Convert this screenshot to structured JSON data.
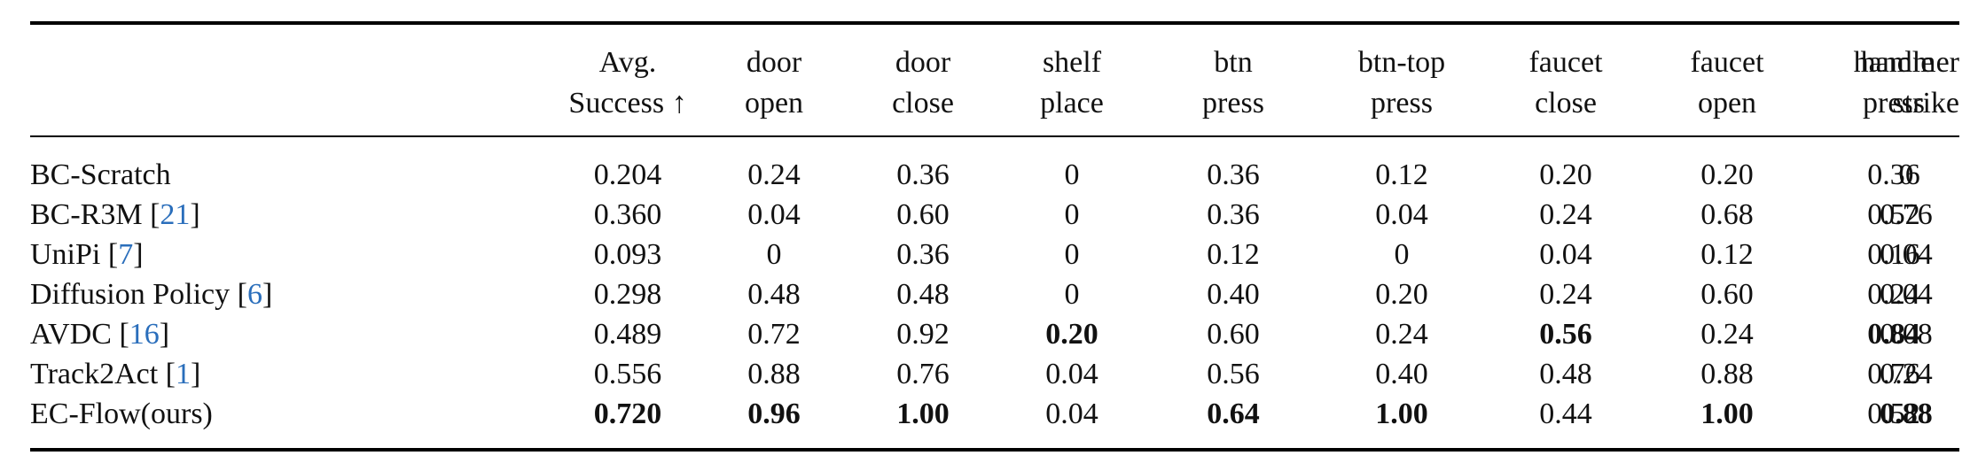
{
  "table": {
    "header": [
      [
        "Avg.",
        "Success ↑"
      ],
      [
        "door",
        "open"
      ],
      [
        "door",
        "close"
      ],
      [
        "shelf",
        "place"
      ],
      [
        "btn",
        "press"
      ],
      [
        "btn-top",
        "press"
      ],
      [
        "faucet",
        "close"
      ],
      [
        "faucet",
        "open"
      ],
      [
        "handle",
        "press"
      ],
      [
        "hammer",
        "strike"
      ]
    ],
    "rows": [
      {
        "label": [
          "BC-Scratch"
        ],
        "cells": [
          "0.204",
          "0.24",
          "0.36",
          "0",
          "0.36",
          "0.12",
          "0.20",
          "0.20",
          "0.36",
          "0"
        ],
        "bold": []
      },
      {
        "label": [
          "BC-R3M [",
          "21",
          "]"
        ],
        "cells": [
          "0.360",
          "0.04",
          "0.60",
          "0",
          "0.36",
          "0.04",
          "0.24",
          "0.68",
          "0.52",
          "0.76"
        ],
        "bold": []
      },
      {
        "label": [
          "UniPi [",
          "7",
          "]"
        ],
        "cells": [
          "0.093",
          "0",
          "0.36",
          "0",
          "0.12",
          "0",
          "0.04",
          "0.12",
          "0.16",
          "0.04"
        ],
        "bold": []
      },
      {
        "label": [
          "Diffusion Policy [",
          "6",
          "]"
        ],
        "cells": [
          "0.298",
          "0.48",
          "0.48",
          "0",
          "0.40",
          "0.20",
          "0.24",
          "0.60",
          "0.24",
          "0.04"
        ],
        "bold": []
      },
      {
        "label": [
          "AVDC [",
          "16",
          "]"
        ],
        "cells": [
          "0.489",
          "0.72",
          "0.92",
          "0.20",
          "0.60",
          "0.24",
          "0.56",
          "0.24",
          "0.84",
          "0.08"
        ],
        "bold": [
          3,
          6,
          8
        ]
      },
      {
        "label": [
          "Track2Act [",
          "1",
          "]"
        ],
        "cells": [
          "0.556",
          "0.88",
          "0.76",
          "0.04",
          "0.56",
          "0.40",
          "0.48",
          "0.88",
          "0.76",
          "0.24"
        ],
        "bold": []
      },
      {
        "label": [
          "EC-Flow(ours)"
        ],
        "cells": [
          "0.720",
          "0.96",
          "1.00",
          "0.04",
          "0.64",
          "1.00",
          "0.44",
          "1.00",
          "0.52",
          "0.88"
        ],
        "bold": [
          0,
          1,
          2,
          4,
          5,
          7,
          9
        ]
      }
    ]
  }
}
